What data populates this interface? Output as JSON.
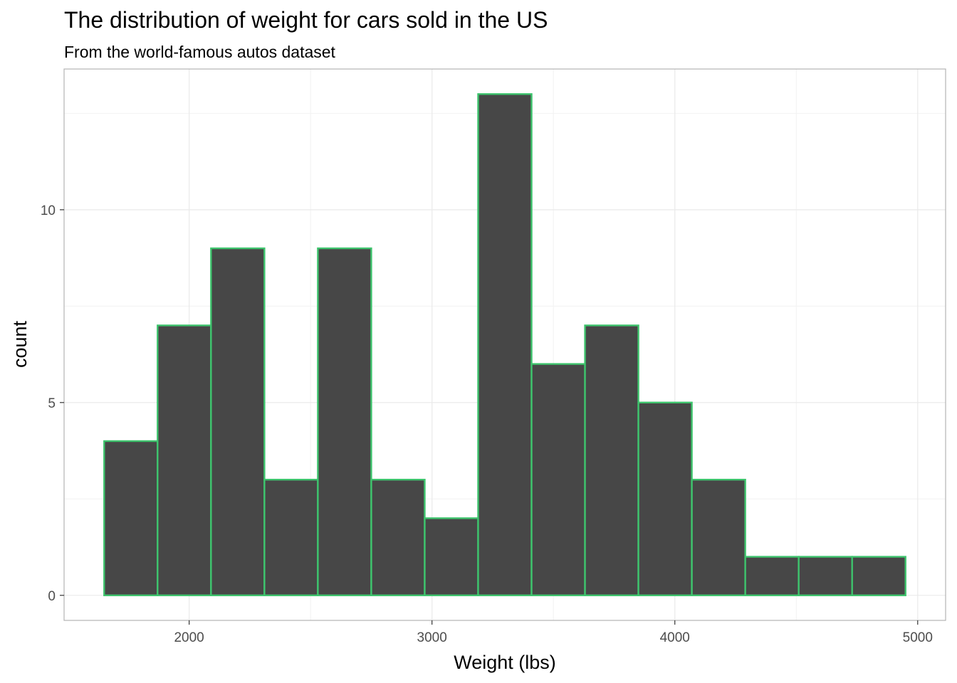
{
  "chart_data": {
    "type": "bar",
    "title": "The distribution of weight for cars sold in the US",
    "subtitle": "From the world-famous autos dataset",
    "xlabel": "Weight (lbs)",
    "ylabel": "count",
    "bins": [
      {
        "x0": 1650,
        "x1": 1870,
        "count": 4
      },
      {
        "x0": 1870,
        "x1": 2090,
        "count": 7
      },
      {
        "x0": 2090,
        "x1": 2310,
        "count": 9
      },
      {
        "x0": 2310,
        "x1": 2530,
        "count": 3
      },
      {
        "x0": 2530,
        "x1": 2750,
        "count": 9
      },
      {
        "x0": 2750,
        "x1": 2970,
        "count": 3
      },
      {
        "x0": 2970,
        "x1": 3190,
        "count": 2
      },
      {
        "x0": 3190,
        "x1": 3410,
        "count": 13
      },
      {
        "x0": 3410,
        "x1": 3630,
        "count": 6
      },
      {
        "x0": 3630,
        "x1": 3850,
        "count": 7
      },
      {
        "x0": 3850,
        "x1": 4070,
        "count": 5
      },
      {
        "x0": 4070,
        "x1": 4290,
        "count": 3
      },
      {
        "x0": 4290,
        "x1": 4510,
        "count": 1
      },
      {
        "x0": 4510,
        "x1": 4730,
        "count": 1
      },
      {
        "x0": 4730,
        "x1": 4950,
        "count": 1
      }
    ],
    "xlim": [
      1485,
      5115
    ],
    "ylim": [
      -0.65,
      13.65
    ],
    "x_ticks": [
      2000,
      3000,
      4000,
      5000
    ],
    "y_ticks": [
      0,
      5,
      10
    ],
    "x_minor": [
      2500,
      3500,
      4500
    ],
    "y_minor": [
      2.5,
      7.5,
      12.5
    ],
    "grid": true,
    "legend": "none",
    "bar_fill": "#474747",
    "bar_outline": "#3ec46d"
  }
}
